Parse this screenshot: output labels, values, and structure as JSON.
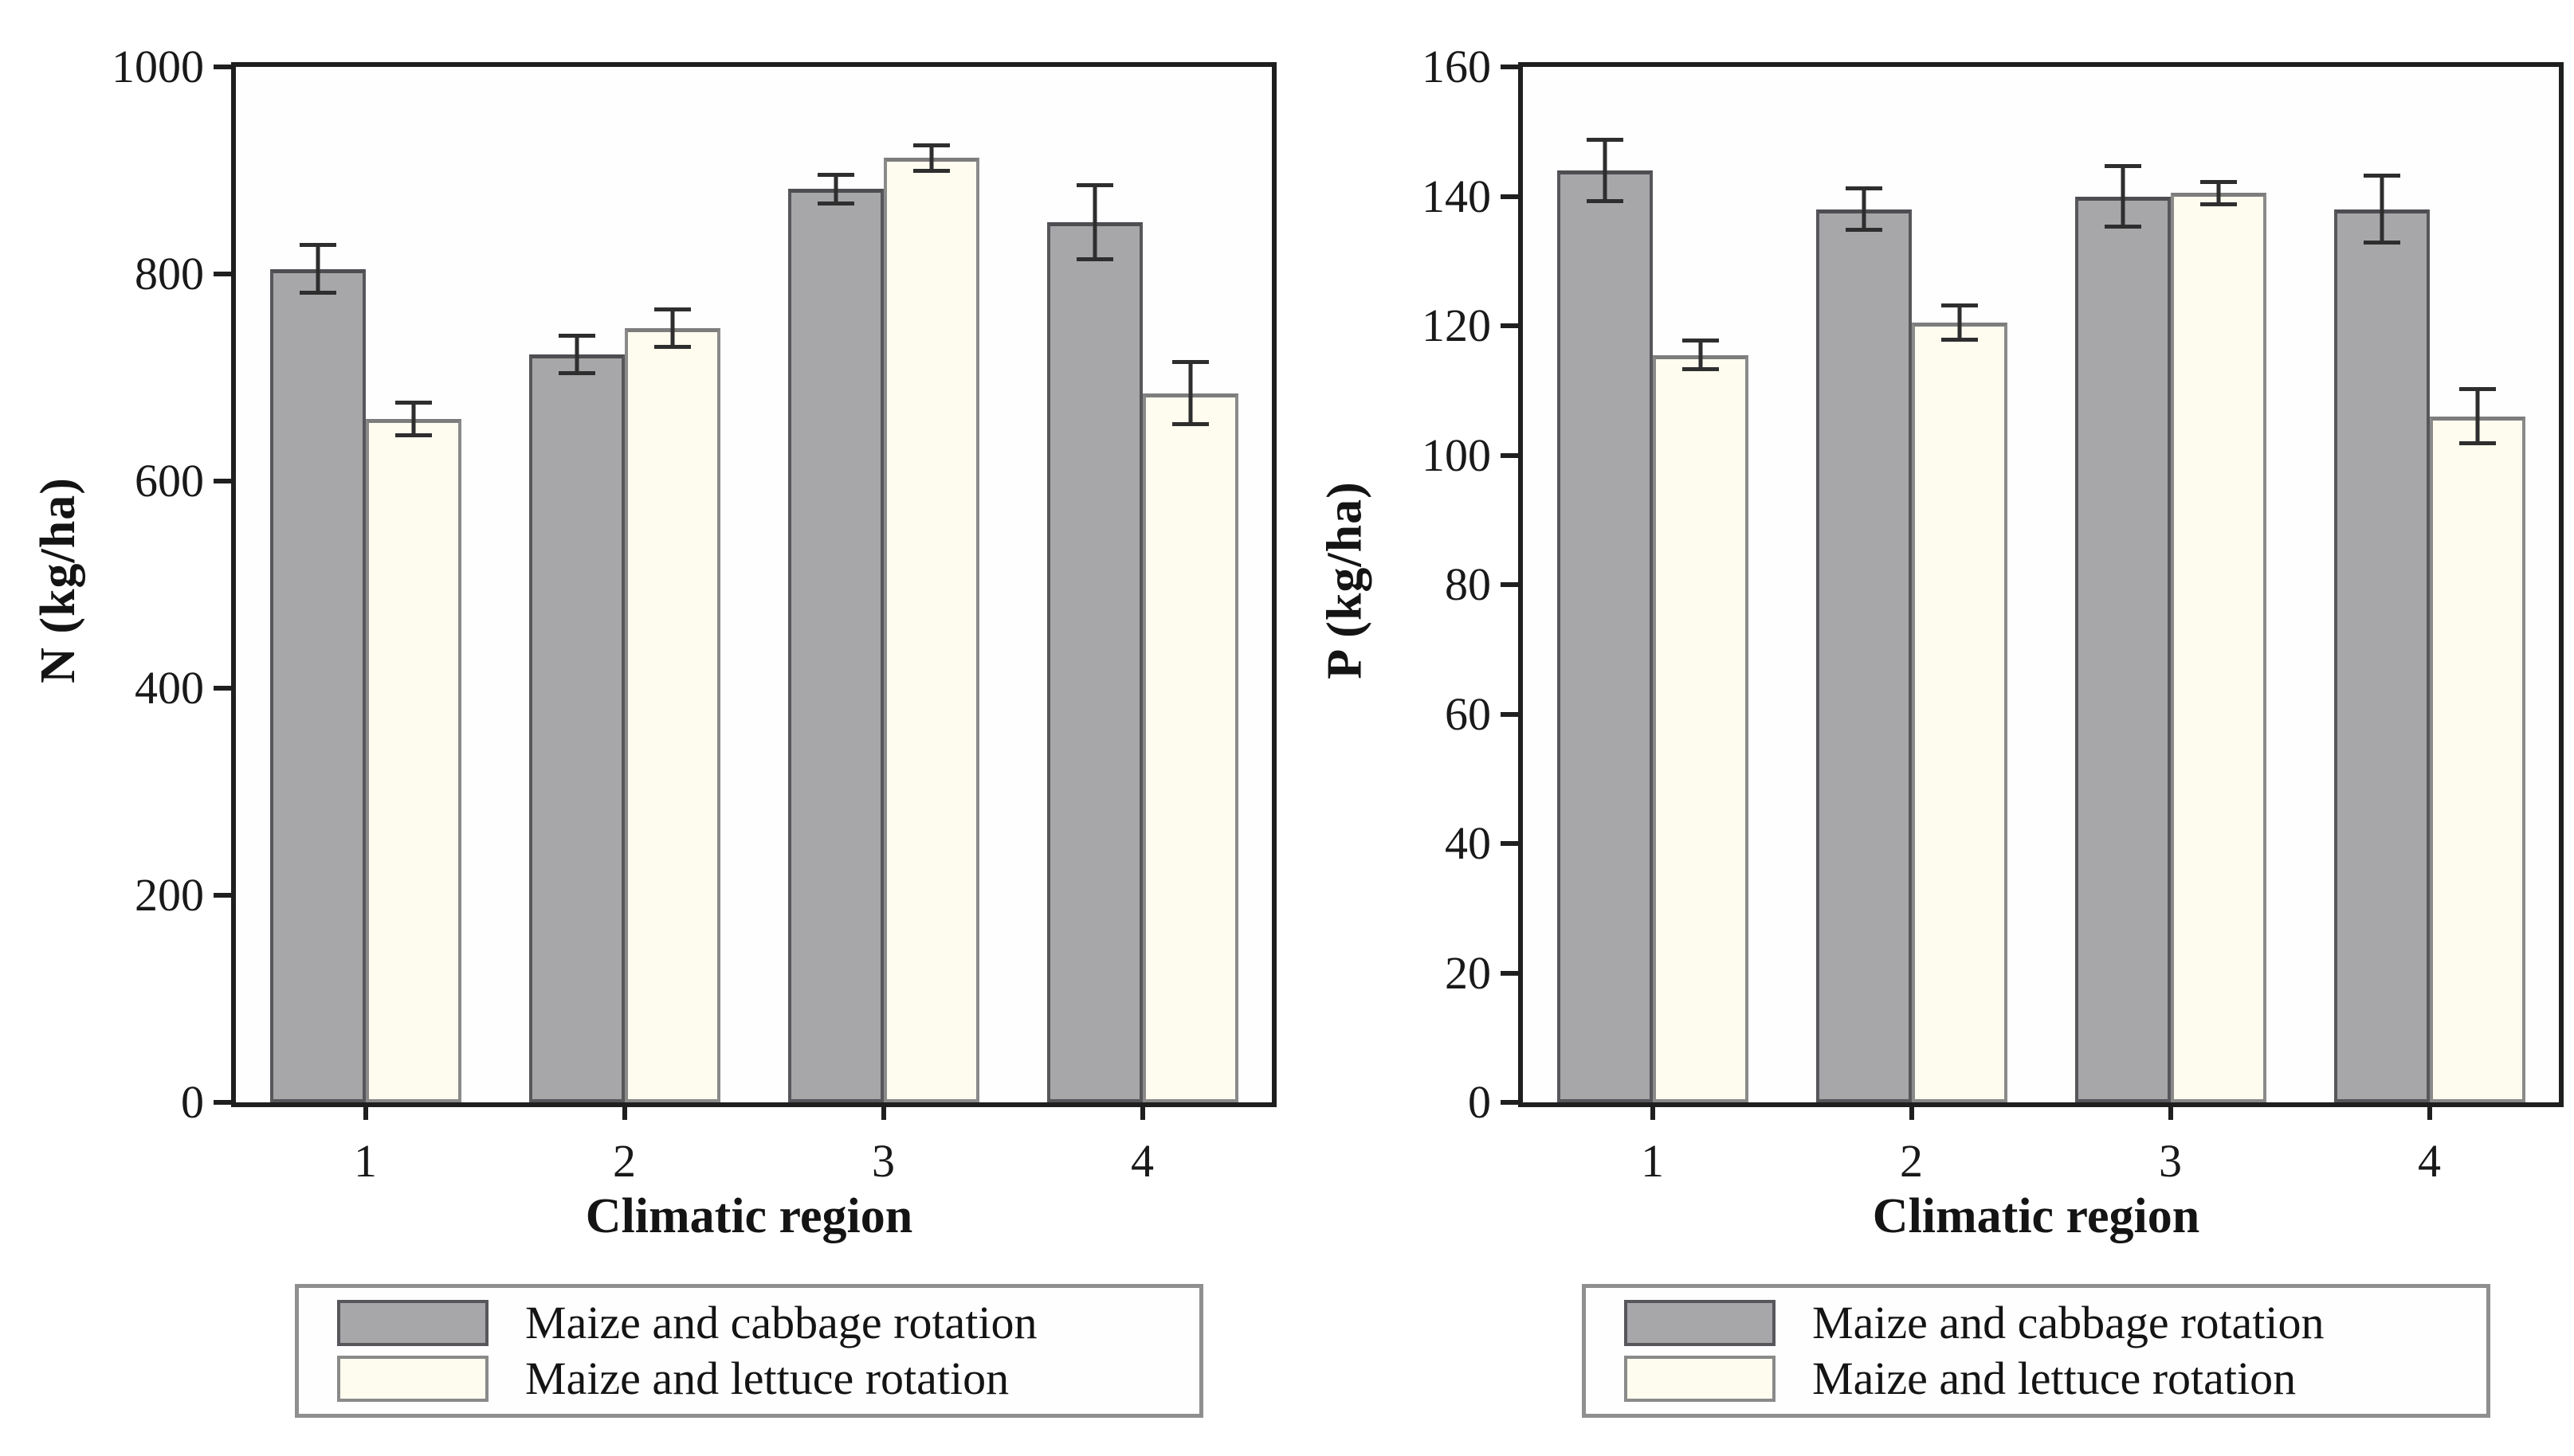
{
  "figure": {
    "background": "#ffffff"
  },
  "colors": {
    "cabbage_fill": "#a7a6a9",
    "cabbage_border": "#57565a",
    "lettuce_fill": "#fdfcee",
    "lettuce_border": "#8a8a8a",
    "axis": "#1f1f1f",
    "error_bar": "#2e2e2e",
    "legend_border": "#8f8f8f"
  },
  "chart_data": [
    {
      "type": "bar",
      "title": "",
      "ylabel": "N (kg/ha)",
      "xlabel": "Climatic region",
      "categories": [
        "1",
        "2",
        "3",
        "4"
      ],
      "ylim": [
        0,
        1000
      ],
      "ytick_step": 200,
      "yticks": [
        "0",
        "200",
        "400",
        "600",
        "800",
        "1000"
      ],
      "grid": false,
      "legend_position": "below",
      "series": [
        {
          "name": "Maize and cabbage rotation",
          "values": [
            805,
            722,
            882,
            850
          ],
          "errors": [
            25,
            20,
            16,
            38
          ]
        },
        {
          "name": "Maize and lettuce rotation",
          "values": [
            660,
            748,
            912,
            685
          ],
          "errors": [
            18,
            20,
            14,
            32
          ]
        }
      ]
    },
    {
      "type": "bar",
      "title": "",
      "ylabel": "P (kg/ha)",
      "xlabel": "Climatic region",
      "categories": [
        "1",
        "2",
        "3",
        "4"
      ],
      "ylim": [
        0,
        160
      ],
      "ytick_step": 20,
      "yticks": [
        "0",
        "20",
        "40",
        "60",
        "80",
        "100",
        "120",
        "140",
        "160"
      ],
      "grid": false,
      "legend_position": "below",
      "series": [
        {
          "name": "Maize and cabbage rotation",
          "values": [
            144,
            138,
            140,
            138
          ],
          "errors": [
            5,
            3.5,
            5,
            5.5
          ]
        },
        {
          "name": "Maize and lettuce rotation",
          "values": [
            115.5,
            120.5,
            140.5,
            106
          ],
          "errors": [
            2.5,
            3,
            2,
            4.5
          ]
        }
      ]
    }
  ]
}
